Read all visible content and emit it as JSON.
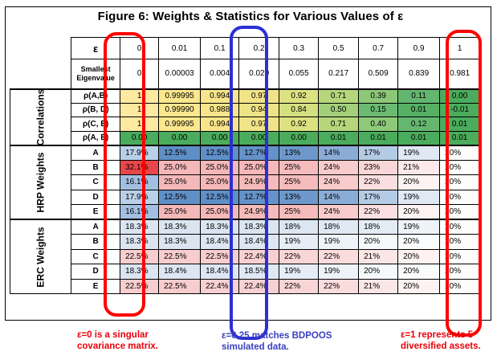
{
  "title": "Figure 6: Weights & Statistics for Various Values of ε",
  "header": {
    "epsilon_symbol": "ε",
    "epsilons": [
      "0",
      "0.01",
      "0.1",
      "0.2",
      "0.3",
      "0.5",
      "0.7",
      "0.9",
      "1"
    ],
    "eig_label_1": "Smallest",
    "eig_label_2": "Eigenvalue",
    "eigenvalues": [
      "0",
      "0.00003",
      "0.004",
      "0.020",
      "0.055",
      "0.217",
      "0.509",
      "0.839",
      "0.981"
    ]
  },
  "correlations": {
    "group_label": "Correlations",
    "rows": [
      {
        "label": "ρ(A,B)",
        "values": [
          "1",
          "0.99995",
          "0.994",
          "0.97",
          "0.92",
          "0.71",
          "0.39",
          "0.11",
          "0.00"
        ],
        "colors": [
          "#fde9a0",
          "#fbe88e",
          "#f8e58b",
          "#f1e388",
          "#dde281",
          "#b5d67b",
          "#8cc878",
          "#63b670",
          "#4aac5c"
        ]
      },
      {
        "label": "ρ(B, D)",
        "values": [
          "1",
          "0.99990",
          "0.988",
          "0.94",
          "0.84",
          "0.50",
          "0.15",
          "0.01",
          "-0.01"
        ],
        "colors": [
          "#fde9a0",
          "#fbe88e",
          "#f8e58b",
          "#eee386",
          "#d4df80",
          "#a2d07a",
          "#6cba72",
          "#55b064",
          "#4aac5c"
        ]
      },
      {
        "label": "ρ(C, E)",
        "values": [
          "1",
          "0.99995",
          "0.994",
          "0.97",
          "0.92",
          "0.71",
          "0.40",
          "0.12",
          "0.01"
        ],
        "colors": [
          "#fde9a0",
          "#fbe88e",
          "#f8e58b",
          "#f1e388",
          "#dde281",
          "#b5d67b",
          "#8ec979",
          "#65b770",
          "#4aac5c"
        ]
      },
      {
        "label": "ρ(A, E)",
        "values": [
          "0.00",
          "0.00",
          "0.00",
          "0.00",
          "0.00",
          "0.01",
          "0.01",
          "0.01",
          "0.01"
        ],
        "colors": [
          "#4aac5c",
          "#4aac5c",
          "#4aac5c",
          "#4aac5c",
          "#4aac5c",
          "#4aac5c",
          "#4aac5c",
          "#4aac5c",
          "#4aac5c"
        ]
      }
    ]
  },
  "hrp": {
    "group_label": "HRP Weights",
    "rows": [
      {
        "label": "A",
        "values": [
          "17.9%",
          "12.5%",
          "12.5%",
          "12.7%",
          "13%",
          "14%",
          "17%",
          "19%",
          "20%"
        ],
        "colors": [
          "#b9d0e8",
          "#5f8fc7",
          "#5f8fc7",
          "#6592c8",
          "#6d98cb",
          "#8aacd6",
          "#b4cbe5",
          "#dfe8f3",
          "#fdfdfd"
        ]
      },
      {
        "label": "B",
        "values": [
          "32.1%",
          "25.0%",
          "25.0%",
          "25.0%",
          "25%",
          "24%",
          "23%",
          "21%",
          "20%"
        ],
        "colors": [
          "#e8474a",
          "#f5b8b9",
          "#f5b8b9",
          "#f5b8b9",
          "#f6bcbd",
          "#f8cbcc",
          "#f9d6d7",
          "#fce9e9",
          "#fdfdfd"
        ]
      },
      {
        "label": "C",
        "values": [
          "16.1%",
          "25.0%",
          "25.0%",
          "24.9%",
          "25%",
          "24%",
          "22%",
          "20%",
          "20%"
        ],
        "colors": [
          "#a2bfe0",
          "#f5b8b9",
          "#f5b8b9",
          "#f5baba",
          "#f6bcbd",
          "#f8cbcc",
          "#fbdfe0",
          "#fdf3f3",
          "#fdfdfd"
        ]
      },
      {
        "label": "D",
        "values": [
          "17.9%",
          "12.5%",
          "12.5%",
          "12.7%",
          "13%",
          "14%",
          "17%",
          "19%",
          "20%"
        ],
        "colors": [
          "#b9d0e8",
          "#5f8fc7",
          "#5f8fc7",
          "#6592c8",
          "#6d98cb",
          "#8aacd6",
          "#b4cbe5",
          "#dfe8f3",
          "#fdfdfd"
        ]
      },
      {
        "label": "E",
        "values": [
          "16.1%",
          "25.0%",
          "25.0%",
          "24.9%",
          "25%",
          "24%",
          "22%",
          "20%",
          "20%"
        ],
        "colors": [
          "#a2bfe0",
          "#f5b8b9",
          "#f5b8b9",
          "#f5baba",
          "#f6bcbd",
          "#f8cbcc",
          "#fbdfe0",
          "#fdf3f3",
          "#fdfdfd"
        ]
      }
    ]
  },
  "erc": {
    "group_label": "ERC Weights",
    "rows": [
      {
        "label": "A",
        "values": [
          "18.3%",
          "18.3%",
          "18.3%",
          "18.3%",
          "18%",
          "18%",
          "18%",
          "19%",
          "20%"
        ],
        "colors": [
          "#dbe5f1",
          "#dbe5f1",
          "#dbe5f1",
          "#dbe5f1",
          "#dce6f2",
          "#dfe8f3",
          "#e3ebf5",
          "#eef3f9",
          "#fdfdfd"
        ]
      },
      {
        "label": "B",
        "values": [
          "18.3%",
          "18.3%",
          "18.4%",
          "18.4%",
          "19%",
          "19%",
          "20%",
          "20%",
          "20%"
        ],
        "colors": [
          "#dbe5f1",
          "#dbe5f1",
          "#dde6f2",
          "#dde6f2",
          "#e6edf6",
          "#eef3f9",
          "#f6f9fb",
          "#fbfcfd",
          "#fdfdfd"
        ]
      },
      {
        "label": "C",
        "values": [
          "22.5%",
          "22.5%",
          "22.5%",
          "22.4%",
          "22%",
          "22%",
          "21%",
          "20%",
          "20%"
        ],
        "colors": [
          "#f8cdce",
          "#f8cdce",
          "#f8cdce",
          "#f8d0d1",
          "#f9d5d6",
          "#fadcdd",
          "#fbe6e6",
          "#fdf1f1",
          "#fdfdfd"
        ]
      },
      {
        "label": "D",
        "values": [
          "18.3%",
          "18.4%",
          "18.4%",
          "18.5%",
          "19%",
          "19%",
          "20%",
          "20%",
          "20%"
        ],
        "colors": [
          "#dbe5f1",
          "#dde6f2",
          "#dde6f2",
          "#dfe8f3",
          "#e6edf6",
          "#eef3f9",
          "#f6f9fb",
          "#fbfcfd",
          "#fdfdfd"
        ]
      },
      {
        "label": "E",
        "values": [
          "22.5%",
          "22.5%",
          "22.4%",
          "22.4%",
          "22%",
          "22%",
          "21%",
          "20%",
          "20%"
        ],
        "colors": [
          "#f8cdce",
          "#f8cdce",
          "#f8d0d1",
          "#f8d0d1",
          "#f9d5d6",
          "#fadcdd",
          "#fbe6e6",
          "#fdf1f1",
          "#fdfdfd"
        ]
      }
    ]
  },
  "annotations": {
    "left": {
      "line1_symbol": "ε",
      "line1_rest": "=0 is a singular",
      "line2": "covariance matrix.",
      "color": "#e8000b"
    },
    "middle": {
      "line1_symbol": "ε",
      "line1_rest": "=0.25 matches BDPOOS",
      "line2": "simulated data.",
      "color": "#3a3fbf"
    },
    "right": {
      "line1_symbol": "ε",
      "line1_rest": "=1 represents 5",
      "line2": "diversified assets.",
      "color": "#e8000b"
    }
  },
  "ring_colors": {
    "red": "#ff0000",
    "blue": "#2b2fd4"
  }
}
